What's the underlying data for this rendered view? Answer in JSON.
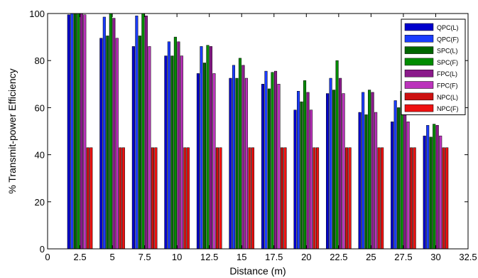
{
  "chart_data": {
    "type": "bar",
    "xlabel": "Distance (m)",
    "ylabel": "% Transmit-power Efficiency",
    "xlim": [
      0,
      32.5
    ],
    "ylim": [
      0,
      100
    ],
    "x_ticks": [
      "0",
      "2.5",
      "5",
      "7.5",
      "10",
      "12.5",
      "15",
      "17.5",
      "20",
      "22.5",
      "25",
      "27.5",
      "30",
      "32.5"
    ],
    "y_ticks": [
      "0",
      "20",
      "40",
      "60",
      "80",
      "100"
    ],
    "legend_position": "top-right",
    "grid": false,
    "categories": [
      2.5,
      5,
      7.5,
      10,
      12.5,
      15,
      17.5,
      20,
      22.5,
      25,
      27.5,
      30
    ],
    "series": [
      {
        "name": "QPC(L)",
        "color": "#0000cc",
        "values": [
          99.5,
          89.5,
          86,
          82,
          74.5,
          72.5,
          70,
          59,
          66,
          58,
          54,
          48
        ]
      },
      {
        "name": "QPC(F)",
        "color": "#1a3cff",
        "values": [
          100,
          98.5,
          99,
          88,
          86,
          78,
          75.5,
          67,
          72.5,
          66.5,
          63,
          52.5
        ]
      },
      {
        "name": "SPC(L)",
        "color": "#006600",
        "values": [
          100,
          90.5,
          90.5,
          82,
          79,
          72.5,
          68,
          62.5,
          67.5,
          57,
          60,
          47.5
        ]
      },
      {
        "name": "SPC(F)",
        "color": "#008c00",
        "values": [
          100,
          100,
          100,
          90,
          86.5,
          81,
          75,
          71.5,
          80,
          67.5,
          67,
          53
        ]
      },
      {
        "name": "FPC(L)",
        "color": "#8a1a8a",
        "values": [
          100,
          98,
          99,
          88,
          86,
          78,
          75.5,
          66.5,
          72.5,
          66.5,
          63,
          52.5
        ]
      },
      {
        "name": "FPC(F)",
        "color": "#bb33bb",
        "values": [
          99.5,
          89.5,
          86,
          82,
          74.5,
          72.5,
          70,
          59,
          66,
          58,
          54,
          48
        ]
      },
      {
        "name": "NPC(L)",
        "color": "#cc1111",
        "values": [
          43,
          43,
          43,
          43,
          43,
          43,
          43,
          43,
          43,
          43,
          43,
          43
        ]
      },
      {
        "name": "NPC(F)",
        "color": "#ee1111",
        "values": [
          43,
          43,
          43,
          43,
          43,
          43,
          43,
          43,
          43,
          43,
          43,
          43
        ]
      }
    ]
  }
}
